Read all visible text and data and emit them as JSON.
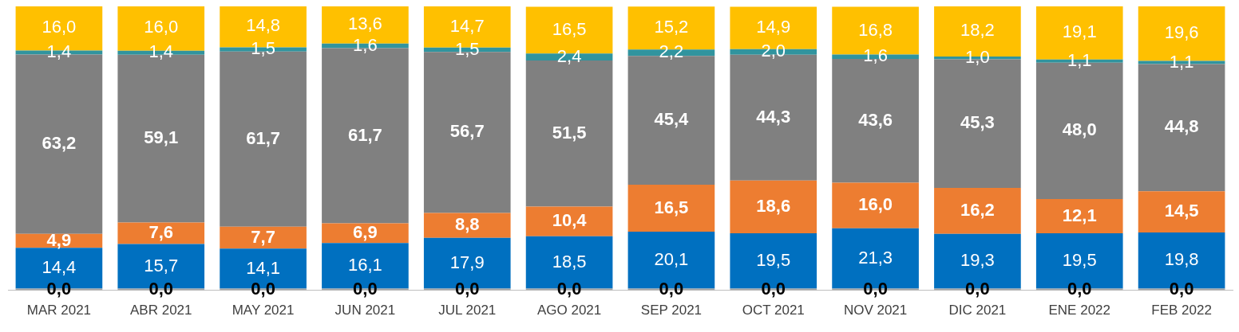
{
  "chart_data": {
    "type": "bar",
    "stacked": true,
    "categories": [
      "MAR 2021",
      "ABR 2021",
      "MAY 2021",
      "JUN 2021",
      "JUL 2021",
      "AGO 2021",
      "SEP 2021",
      "OCT 2021",
      "NOV 2021",
      "DIC 2021",
      "ENE 2022",
      "FEB 2022"
    ],
    "ylim": [
      0,
      100
    ],
    "tick_labels": "x",
    "grid": false,
    "legend": false,
    "series": [
      {
        "color": "#a5a5a5",
        "values": [
          0,
          0,
          0,
          0,
          0,
          0,
          0,
          0,
          0,
          0,
          0,
          0
        ],
        "value_labels": [
          "0,0",
          "0,0",
          "0,0",
          "0,0",
          "0,0",
          "0,0",
          "0,0",
          "0,0",
          "0,0",
          "0,0",
          "0,0",
          "0,0"
        ]
      },
      {
        "color": "#0070c0",
        "values": [
          14.4,
          15.7,
          14.1,
          16.1,
          17.9,
          18.5,
          20.1,
          19.5,
          21.3,
          19.3,
          19.5,
          19.8
        ],
        "value_labels": [
          "14,4",
          "15,7",
          "14,1",
          "16,1",
          "17,9",
          "18,5",
          "20,1",
          "19,5",
          "21,3",
          "19,3",
          "19,5",
          "19,8"
        ]
      },
      {
        "color": "#ed7d31",
        "values": [
          4.9,
          7.6,
          7.7,
          6.9,
          8.8,
          10.4,
          16.5,
          18.6,
          16.0,
          16.2,
          12.1,
          14.5
        ],
        "value_labels": [
          "4,9",
          "7,6",
          "7,7",
          "6,9",
          "8,8",
          "10,4",
          "16,5",
          "18,6",
          "16,0",
          "16,2",
          "12,1",
          "14,5"
        ]
      },
      {
        "color": "#808080",
        "values": [
          63.2,
          59.1,
          61.7,
          61.7,
          56.7,
          51.5,
          45.4,
          44.3,
          43.6,
          45.3,
          48.0,
          44.8
        ],
        "value_labels": [
          "63,2",
          "59,1",
          "61,7",
          "61,7",
          "56,7",
          "51,5",
          "45,4",
          "44,3",
          "43,6",
          "45,3",
          "48,0",
          "44,8"
        ]
      },
      {
        "color": "#31949e",
        "values": [
          1.4,
          1.4,
          1.5,
          1.6,
          1.5,
          2.4,
          2.2,
          2.0,
          1.6,
          1.0,
          1.1,
          1.1
        ],
        "value_labels": [
          "1,4",
          "1,4",
          "1,5",
          "1,6",
          "1,5",
          "2,4",
          "2,2",
          "2,0",
          "1,6",
          "1,0",
          "1,1",
          "1,1"
        ]
      },
      {
        "color": "#ffc000",
        "values": [
          16.0,
          16.0,
          14.8,
          13.6,
          14.7,
          16.5,
          15.2,
          14.9,
          16.8,
          18.2,
          19.1,
          19.6
        ],
        "value_labels": [
          "16,0",
          "16,0",
          "14,8",
          "13,6",
          "14,7",
          "16,5",
          "15,2",
          "14,9",
          "16,8",
          "18,2",
          "19,1",
          "19,6"
        ]
      }
    ]
  }
}
